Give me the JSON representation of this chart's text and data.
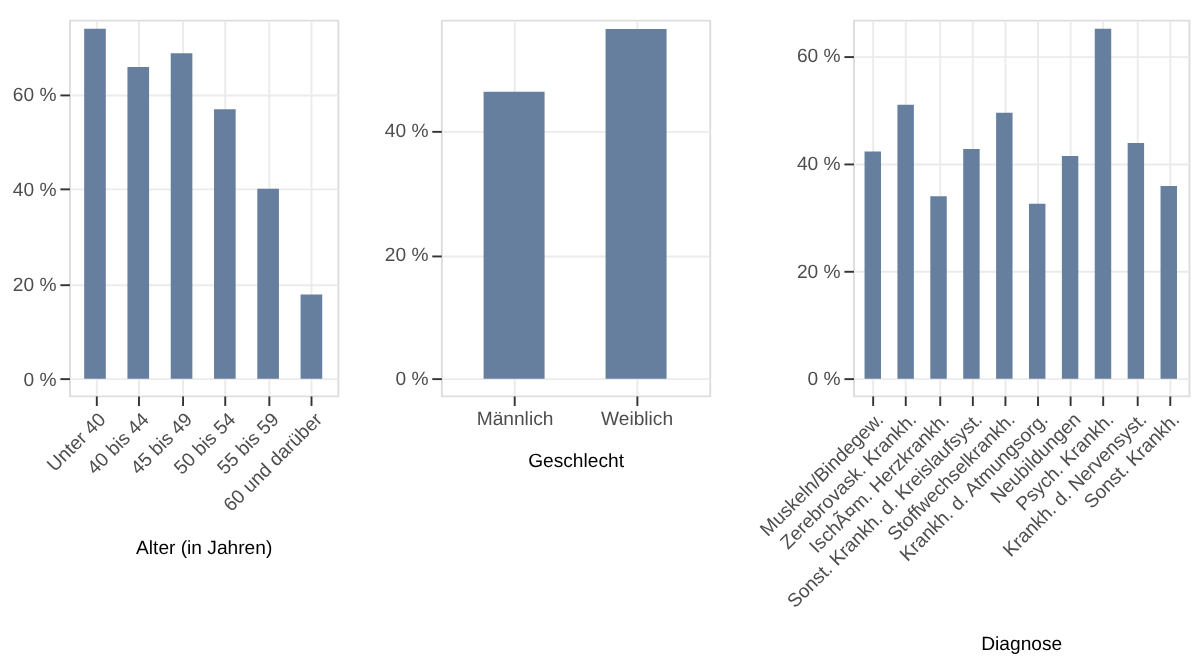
{
  "chart_data": [
    {
      "type": "bar",
      "xlabel": "Alter (in Jahren)",
      "categories": [
        "Unter 40",
        "40 bis 44",
        "45 bis 49",
        "50 bis 54",
        "55 bis 59",
        "60 und darüber"
      ],
      "values": [
        73.9,
        65.8,
        68.7,
        56.9,
        40.1,
        17.8
      ],
      "color": "#667f9e",
      "ylim": [
        -3.5,
        75.8
      ],
      "yticks": [
        {
          "value": 0,
          "label": "0 %"
        },
        {
          "value": 20,
          "label": "20 %"
        },
        {
          "value": 40,
          "label": "40 %"
        },
        {
          "value": 60,
          "label": "60 %"
        }
      ],
      "grid": true
    },
    {
      "type": "bar",
      "xlabel": "Geschlecht",
      "categories": [
        "Männlich",
        "Weiblich"
      ],
      "values": [
        46.3,
        56.4
      ],
      "color": "#667f9e",
      "ylim": [
        -2.7,
        57.9
      ],
      "yticks": [
        {
          "value": 0,
          "label": "0 %"
        },
        {
          "value": 20,
          "label": "20 %"
        },
        {
          "value": 40,
          "label": "40 %"
        }
      ],
      "grid": true
    },
    {
      "type": "bar",
      "xlabel": "Diagnose",
      "categories": [
        "Muskeln/Bindegew.",
        "Zerebrovask. Krankh.",
        "IschÃ¤m. Herzkrankh.",
        "Sonst. Krankh. d. Kreislaufsyst.",
        "Stoffwechselkrankh.",
        "Krankh. d. Atmungsorg.",
        "Neubildungen",
        "Psych. Krankh.",
        "Krankh. d. Nervensyst.",
        "Sonst. Krankh."
      ],
      "values": [
        42.2,
        50.9,
        33.9,
        42.7,
        49.4,
        32.5,
        41.4,
        65.0,
        43.8,
        35.8
      ],
      "color": "#667f9e",
      "ylim": [
        -3.1,
        66.7
      ],
      "yticks": [
        {
          "value": 0,
          "label": "0 %"
        },
        {
          "value": 20,
          "label": "20 %"
        },
        {
          "value": 40,
          "label": "40 %"
        },
        {
          "value": 60,
          "label": "60 %"
        }
      ],
      "grid": true
    }
  ]
}
